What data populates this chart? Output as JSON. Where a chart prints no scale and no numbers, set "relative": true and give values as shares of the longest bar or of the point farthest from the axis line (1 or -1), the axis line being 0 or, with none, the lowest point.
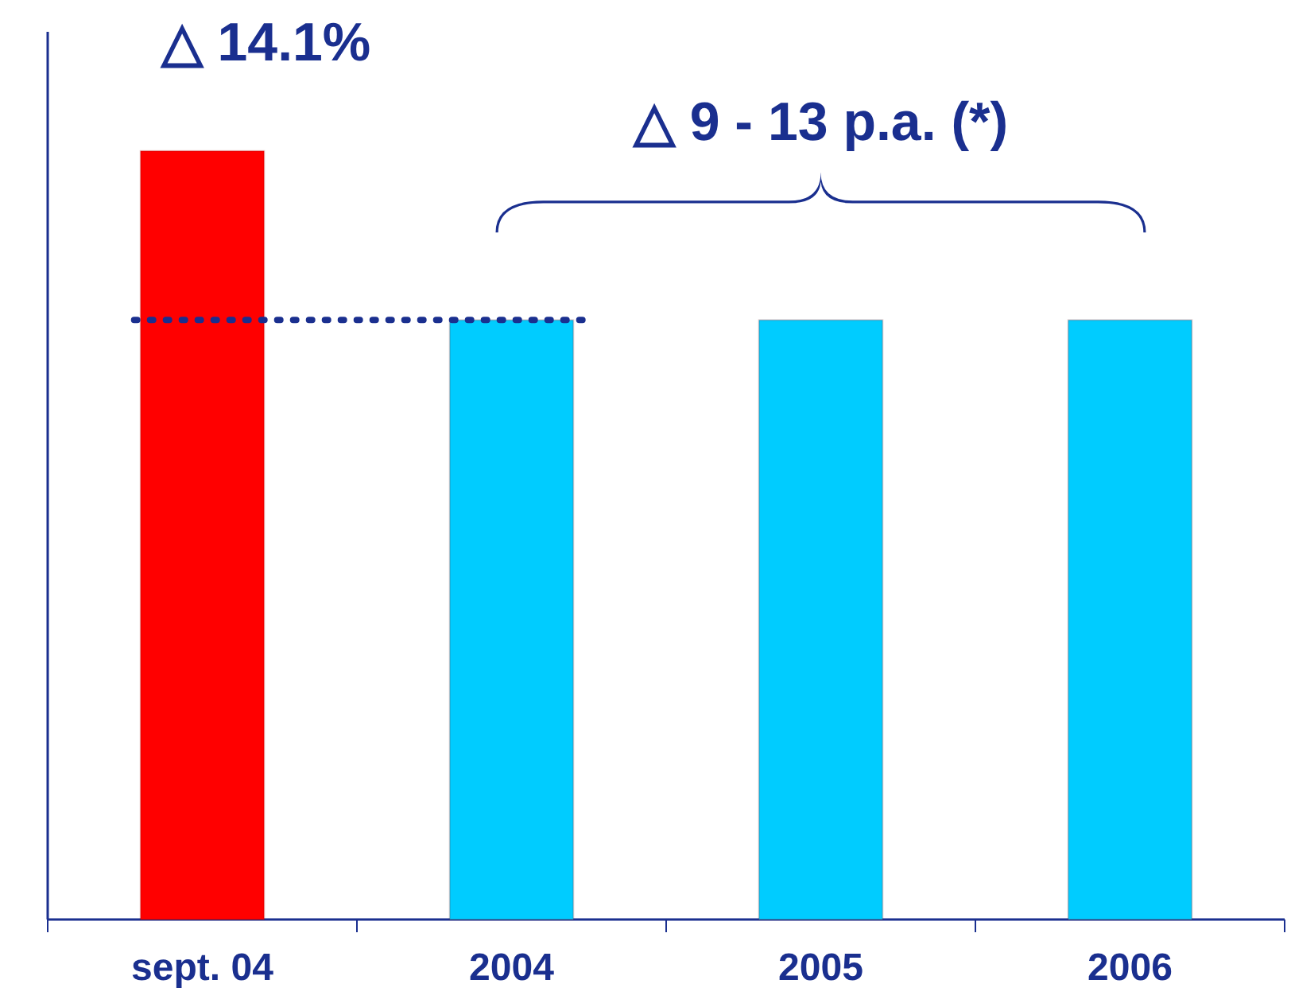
{
  "chart_data": {
    "type": "bar",
    "relative": true,
    "categories": [
      "sept. 04",
      "2004",
      "2005",
      "2006"
    ],
    "values": [
      1,
      0.78,
      0.78,
      0.78
    ],
    "colors": [
      "#ff0000",
      "#00ccff",
      "#00ccff",
      "#00ccff"
    ],
    "annotations": [
      "△ 14.1%",
      "△ 9 - 13 p.a. (*)"
    ],
    "ref_lines": [
      {
        "axis": "y",
        "value": 0.78,
        "color": "#1a2f8f",
        "line_style": "dotted"
      }
    ]
  }
}
